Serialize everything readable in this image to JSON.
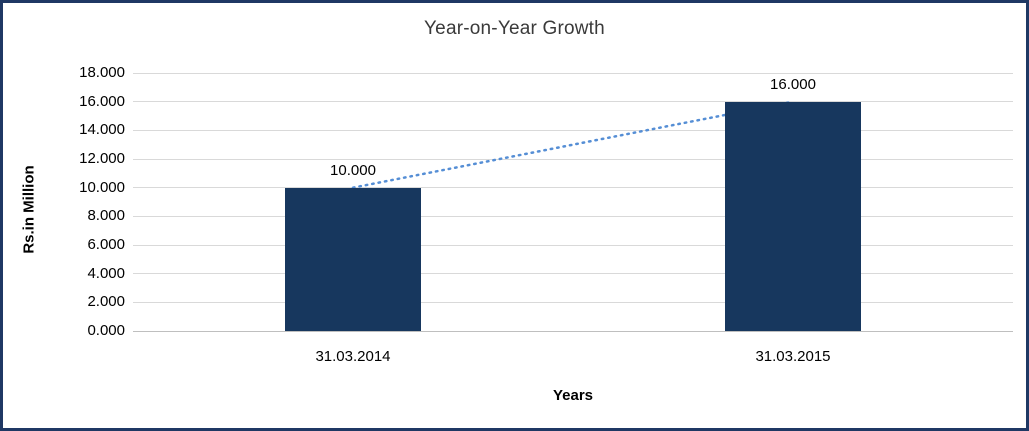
{
  "chart_data": {
    "type": "bar",
    "title": "Year-on-Year Growth",
    "xlabel": "Years",
    "ylabel": "Rs.in Million",
    "categories": [
      "31.03.2014",
      "31.03.2015"
    ],
    "values": [
      10,
      16
    ],
    "data_labels": [
      "10.000",
      "16.000"
    ],
    "ylim": [
      0,
      18
    ],
    "ytick_step": 2,
    "ytick_labels": [
      "0.000",
      "2.000",
      "4.000",
      "6.000",
      "8.000",
      "10.000",
      "12.000",
      "14.000",
      "16.000",
      "18.000"
    ],
    "grid": true,
    "legend": "none",
    "has_trendline": true,
    "colors": {
      "bar": "#17375E",
      "trendline": "#558ED5",
      "frame_border": "#1F3864",
      "gridline": "#D9D9D9",
      "axis_line": "#BFBFBF",
      "title_text": "#3a3a3a"
    }
  }
}
